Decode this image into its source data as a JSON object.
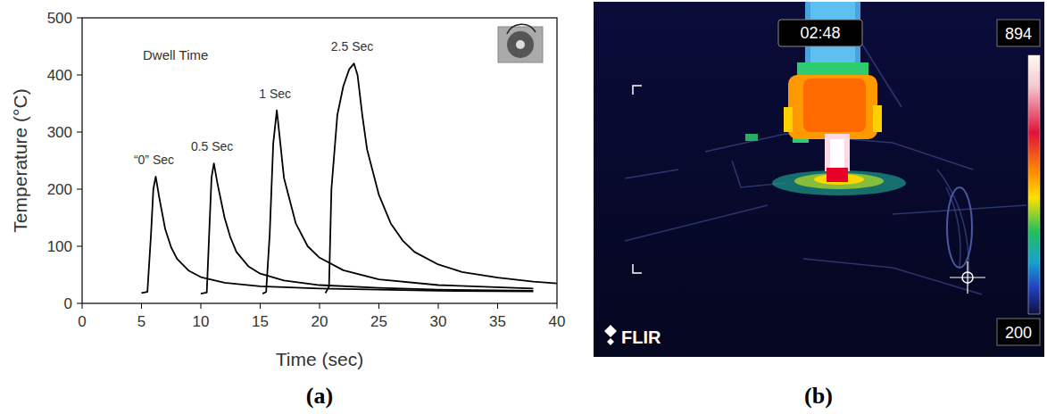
{
  "chart_data": {
    "type": "line",
    "panel_label": "(a)",
    "annotation": "Dwell Time",
    "x_label": "Time (sec)",
    "y_label": "Temperature (°C)",
    "xlim": [
      0,
      40
    ],
    "xticks": [
      0,
      5,
      10,
      15,
      20,
      25,
      30,
      35,
      40
    ],
    "ylim": [
      0,
      500
    ],
    "yticks": [
      0,
      100,
      200,
      300,
      400,
      500
    ],
    "series": [
      {
        "name": "“0” Sec",
        "color": "#000000",
        "x": [
          5,
          5.5,
          5.8,
          6.0,
          6.2,
          6.5,
          7,
          7.5,
          8,
          9,
          10,
          12,
          15,
          20,
          25,
          30,
          38
        ],
        "values": [
          18,
          20,
          120,
          200,
          222,
          185,
          130,
          98,
          78,
          57,
          46,
          36,
          30,
          26,
          24,
          22,
          21
        ]
      },
      {
        "name": "0.5 Sec",
        "color": "#000000",
        "x": [
          10,
          10.5,
          10.7,
          10.9,
          11.1,
          11.4,
          12,
          12.5,
          13,
          14,
          15,
          17,
          20,
          25,
          30,
          38
        ],
        "values": [
          17,
          19,
          120,
          220,
          245,
          210,
          150,
          115,
          90,
          65,
          52,
          40,
          32,
          27,
          24,
          22
        ]
      },
      {
        "name": "1 Sec",
        "color": "#000000",
        "x": [
          15.2,
          15.5,
          15.8,
          16.1,
          16.4,
          16.7,
          17,
          18,
          19,
          20,
          22,
          25,
          30,
          38
        ],
        "values": [
          17,
          20,
          120,
          280,
          338,
          280,
          220,
          140,
          100,
          80,
          58,
          42,
          32,
          26
        ]
      },
      {
        "name": "2.5 Sec",
        "color": "#000000",
        "x": [
          20.5,
          20.8,
          21,
          21.5,
          22,
          22.5,
          22.9,
          23.2,
          23.6,
          24,
          25,
          26,
          27,
          28,
          30,
          32,
          35,
          38,
          40
        ],
        "values": [
          18,
          30,
          200,
          330,
          380,
          410,
          420,
          400,
          330,
          270,
          190,
          140,
          110,
          90,
          68,
          55,
          45,
          38,
          35
        ]
      }
    ]
  },
  "thermal_image": {
    "panel_label": "(b)",
    "timestamp": "02:48",
    "scale_max": "894",
    "scale_min": "200",
    "brand": "FLIR"
  }
}
